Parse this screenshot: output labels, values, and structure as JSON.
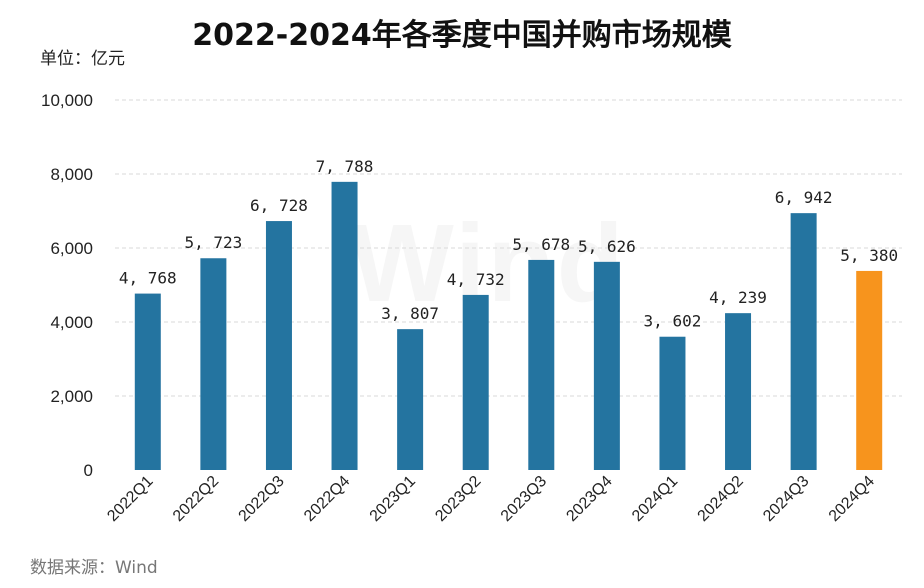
{
  "title": "2022-2024年各季度中国并购市场规模",
  "unit_label": "单位：亿元",
  "source_label": "数据来源：Wind",
  "watermark": "Wind",
  "colors": {
    "bar": "#2474a0",
    "highlight": "#f7941d",
    "grid": "#d9d9d9"
  },
  "chart_data": {
    "type": "bar",
    "title": "2022-2024年各季度中国并购市场规模",
    "xlabel": "",
    "ylabel": "单位：亿元",
    "categories": [
      "2022Q1",
      "2022Q2",
      "2022Q3",
      "2022Q4",
      "2023Q1",
      "2023Q2",
      "2023Q3",
      "2023Q4",
      "2024Q1",
      "2024Q2",
      "2024Q3",
      "2024Q4"
    ],
    "values": [
      4768,
      5723,
      6728,
      7788,
      3807,
      4732,
      5678,
      5626,
      3602,
      4239,
      6942,
      5380
    ],
    "data_labels": [
      "4, 768",
      "5, 723",
      "6, 728",
      "7, 788",
      "3, 807",
      "4, 732",
      "5, 678",
      "5, 626",
      "3, 602",
      "4, 239",
      "6, 942",
      "5, 380"
    ],
    "ylim": [
      0,
      10000
    ],
    "yticks": [
      0,
      2000,
      4000,
      6000,
      8000,
      10000
    ],
    "ytick_labels": [
      "0",
      "2,000",
      "4,000",
      "6,000",
      "8,000",
      "10,000"
    ],
    "grid": true,
    "highlight_category": "2024Q4"
  }
}
